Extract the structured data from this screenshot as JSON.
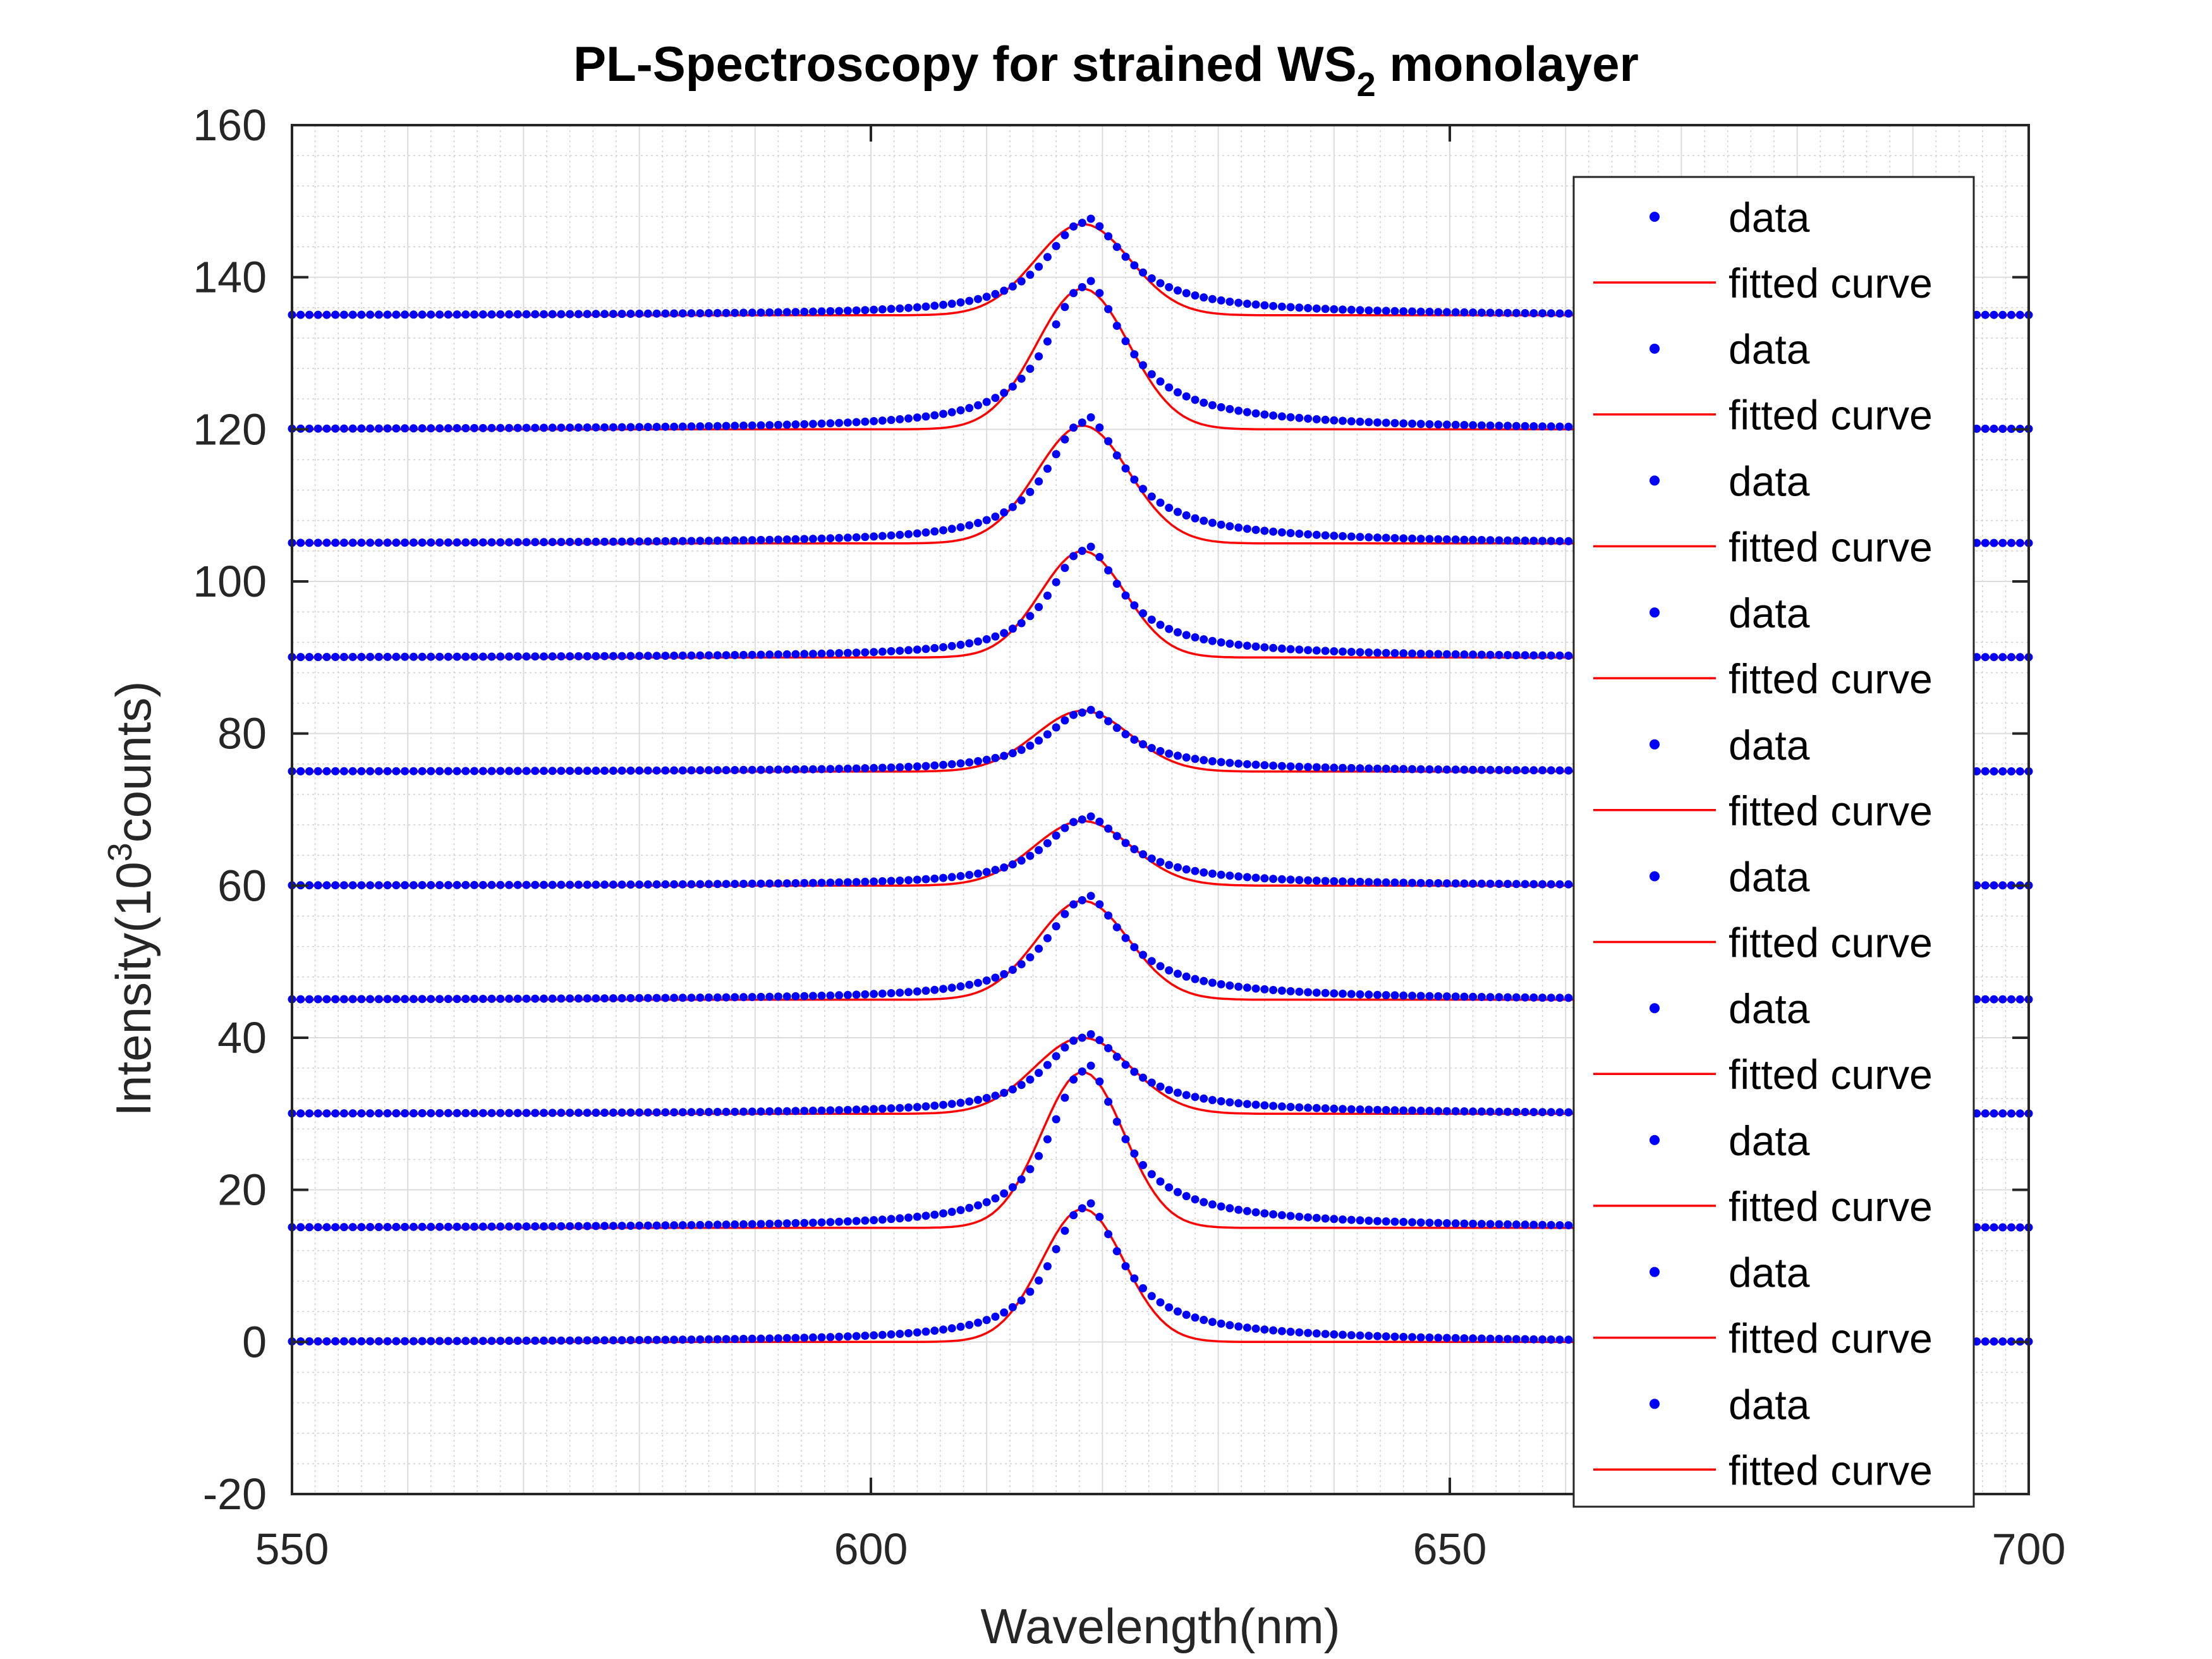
{
  "chart_data": {
    "type": "scatter",
    "title": "PL-Spectroscopy for strained WS",
    "title_subscript": "2",
    "title_suffix": " monolayer",
    "xlabel": "Wavelength(nm)",
    "ylabel_prefix": "Intensity(10",
    "ylabel_superscript": "3",
    "ylabel_suffix": "counts)",
    "xlim": [
      550,
      700
    ],
    "ylim": [
      -20,
      160
    ],
    "xticks": [
      550,
      600,
      650,
      700
    ],
    "xtick_labels": [
      "550",
      "600",
      "650",
      "700"
    ],
    "yticks": [
      -20,
      0,
      20,
      40,
      60,
      80,
      100,
      120,
      140,
      160
    ],
    "ytick_labels": [
      "-20",
      "0",
      "20",
      "40",
      "60",
      "80",
      "100",
      "120",
      "140",
      "160"
    ],
    "grid": "major and minor",
    "legend_position": "right",
    "legend_labels": [
      "data",
      "fitted curve",
      "data",
      "fitted curve",
      "data",
      "fitted curve",
      "data",
      "fitted curve",
      "data",
      "fitted curve",
      "data",
      "fitted curve",
      "data",
      "fitted curve",
      "data",
      "fitted curve",
      "data",
      "fitted curve",
      "data",
      "fitted curve"
    ],
    "colors": {
      "data": "#0000ff",
      "fit": "#ff0000",
      "grid": "#d0d0d0",
      "axis": "#262626"
    },
    "x_range": [
      550,
      700
    ],
    "x_step": 0.75,
    "series": [
      {
        "offset": 0,
        "data_peak": 18.8,
        "fit_peak": 17.5,
        "center": 618.3,
        "width": 3.4
      },
      {
        "offset": 15,
        "data_peak": 37.0,
        "fit_peak": 35.5,
        "center": 618.3,
        "width": 3.4
      },
      {
        "offset": 30,
        "data_peak": 40.7,
        "fit_peak": 40.0,
        "center": 618.3,
        "width": 4.0
      },
      {
        "offset": 45,
        "data_peak": 59.0,
        "fit_peak": 58.0,
        "center": 618.3,
        "width": 3.8
      },
      {
        "offset": 60,
        "data_peak": 69.3,
        "fit_peak": 68.5,
        "center": 618.3,
        "width": 4.0
      },
      {
        "offset": 75,
        "data_peak": 83.3,
        "fit_peak": 83.0,
        "center": 618.3,
        "width": 3.9
      },
      {
        "offset": 90,
        "data_peak": 105.0,
        "fit_peak": 104.0,
        "center": 618.3,
        "width": 3.5
      },
      {
        "offset": 105,
        "data_peak": 122.0,
        "fit_peak": 120.5,
        "center": 618.3,
        "width": 3.8
      },
      {
        "offset": 120,
        "data_peak": 140.0,
        "fit_peak": 138.5,
        "center": 618.3,
        "width": 3.8
      },
      {
        "offset": 135,
        "data_peak": 148.0,
        "fit_peak": 147.0,
        "center": 618.3,
        "width": 3.9
      }
    ]
  }
}
